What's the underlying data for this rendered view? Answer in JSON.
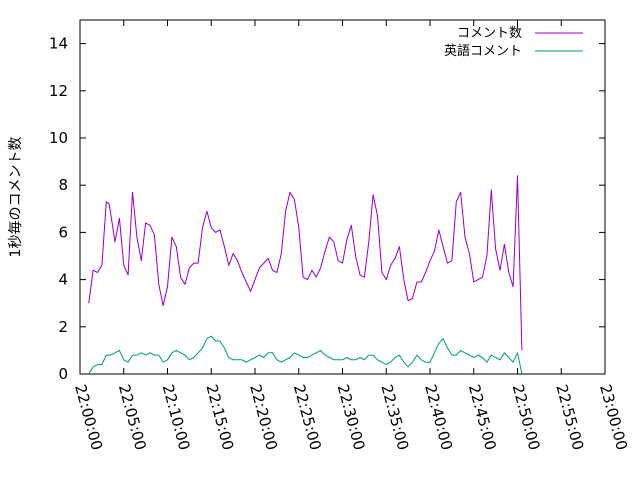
{
  "chart_data": {
    "type": "line",
    "ylabel": "1秒毎のコメント数",
    "xlabel": "",
    "ylim": [
      0,
      15
    ],
    "xlim": [
      "22:00:00",
      "23:00:00"
    ],
    "y_ticks": [
      "0",
      "2",
      "4",
      "6",
      "8",
      "10",
      "12",
      "14"
    ],
    "x_ticks": [
      "22:00:00",
      "22:05:00",
      "22:10:00",
      "22:15:00",
      "22:20:00",
      "22:25:00",
      "22:30:00",
      "22:35:00",
      "22:40:00",
      "22:45:00",
      "22:50:00",
      "22:55:00",
      "23:00:00"
    ],
    "grid": false,
    "legend_position": "top-right",
    "series": [
      {
        "name": "コメント数",
        "color": "#9400d3",
        "points": [
          [
            "22:01:00",
            3.0
          ],
          [
            "22:01:30",
            4.4
          ],
          [
            "22:02:00",
            4.3
          ],
          [
            "22:02:30",
            4.6
          ],
          [
            "22:03:00",
            7.3
          ],
          [
            "22:03:20",
            7.2
          ],
          [
            "22:04:00",
            5.6
          ],
          [
            "22:04:30",
            6.6
          ],
          [
            "22:05:00",
            4.6
          ],
          [
            "22:05:30",
            4.2
          ],
          [
            "22:06:00",
            7.7
          ],
          [
            "22:06:30",
            5.8
          ],
          [
            "22:07:00",
            4.8
          ],
          [
            "22:07:30",
            6.4
          ],
          [
            "22:08:00",
            6.3
          ],
          [
            "22:08:30",
            5.9
          ],
          [
            "22:09:00",
            3.8
          ],
          [
            "22:09:30",
            2.9
          ],
          [
            "22:10:00",
            3.7
          ],
          [
            "22:10:30",
            5.8
          ],
          [
            "22:11:00",
            5.4
          ],
          [
            "22:11:30",
            4.1
          ],
          [
            "22:12:00",
            3.8
          ],
          [
            "22:12:30",
            4.5
          ],
          [
            "22:13:00",
            4.7
          ],
          [
            "22:13:30",
            4.7
          ],
          [
            "22:14:00",
            6.2
          ],
          [
            "22:14:30",
            6.9
          ],
          [
            "22:15:00",
            6.2
          ],
          [
            "22:15:30",
            6.0
          ],
          [
            "22:16:00",
            6.1
          ],
          [
            "22:16:30",
            5.4
          ],
          [
            "22:17:00",
            4.6
          ],
          [
            "22:17:30",
            5.1
          ],
          [
            "22:18:00",
            4.8
          ],
          [
            "22:18:30",
            4.3
          ],
          [
            "22:19:00",
            3.9
          ],
          [
            "22:19:30",
            3.5
          ],
          [
            "22:20:00",
            4.0
          ],
          [
            "22:20:30",
            4.5
          ],
          [
            "22:21:00",
            4.7
          ],
          [
            "22:21:30",
            4.9
          ],
          [
            "22:22:00",
            4.4
          ],
          [
            "22:22:30",
            4.3
          ],
          [
            "22:23:00",
            5.1
          ],
          [
            "22:23:30",
            6.9
          ],
          [
            "22:24:00",
            7.7
          ],
          [
            "22:24:30",
            7.4
          ],
          [
            "22:25:00",
            6.2
          ],
          [
            "22:25:30",
            4.1
          ],
          [
            "22:26:00",
            4.0
          ],
          [
            "22:26:30",
            4.4
          ],
          [
            "22:27:00",
            4.1
          ],
          [
            "22:27:30",
            4.5
          ],
          [
            "22:28:00",
            5.2
          ],
          [
            "22:28:30",
            5.8
          ],
          [
            "22:29:00",
            5.6
          ],
          [
            "22:29:30",
            4.8
          ],
          [
            "22:30:00",
            4.7
          ],
          [
            "22:30:30",
            5.7
          ],
          [
            "22:31:00",
            6.3
          ],
          [
            "22:31:30",
            5.0
          ],
          [
            "22:32:00",
            4.2
          ],
          [
            "22:32:30",
            4.1
          ],
          [
            "22:33:00",
            5.6
          ],
          [
            "22:33:30",
            7.6
          ],
          [
            "22:34:00",
            6.7
          ],
          [
            "22:34:30",
            4.3
          ],
          [
            "22:35:00",
            4.0
          ],
          [
            "22:35:30",
            4.6
          ],
          [
            "22:36:00",
            4.9
          ],
          [
            "22:36:30",
            5.4
          ],
          [
            "22:37:00",
            4.0
          ],
          [
            "22:37:30",
            3.1
          ],
          [
            "22:38:00",
            3.2
          ],
          [
            "22:38:30",
            3.9
          ],
          [
            "22:39:00",
            3.9
          ],
          [
            "22:39:30",
            4.3
          ],
          [
            "22:40:00",
            4.8
          ],
          [
            "22:40:30",
            5.2
          ],
          [
            "22:41:00",
            6.1
          ],
          [
            "22:41:30",
            5.4
          ],
          [
            "22:42:00",
            4.7
          ],
          [
            "22:42:30",
            4.8
          ],
          [
            "22:43:00",
            7.3
          ],
          [
            "22:43:30",
            7.7
          ],
          [
            "22:44:00",
            5.8
          ],
          [
            "22:44:30",
            5.1
          ],
          [
            "22:45:00",
            3.9
          ],
          [
            "22:45:30",
            4.0
          ],
          [
            "22:46:00",
            4.1
          ],
          [
            "22:46:30",
            5.0
          ],
          [
            "22:47:00",
            7.8
          ],
          [
            "22:47:30",
            5.3
          ],
          [
            "22:48:00",
            4.4
          ],
          [
            "22:48:30",
            5.5
          ],
          [
            "22:49:00",
            4.3
          ],
          [
            "22:49:30",
            3.7
          ],
          [
            "22:50:00",
            8.4
          ],
          [
            "22:50:30",
            1.0
          ]
        ]
      },
      {
        "name": "英語コメント",
        "color": "#009e73",
        "points": [
          [
            "22:01:00",
            0.0
          ],
          [
            "22:01:30",
            0.3
          ],
          [
            "22:02:00",
            0.4
          ],
          [
            "22:02:30",
            0.4
          ],
          [
            "22:03:00",
            0.8
          ],
          [
            "22:03:30",
            0.8
          ],
          [
            "22:04:00",
            0.9
          ],
          [
            "22:04:30",
            1.0
          ],
          [
            "22:05:00",
            0.6
          ],
          [
            "22:05:30",
            0.5
          ],
          [
            "22:06:00",
            0.8
          ],
          [
            "22:06:30",
            0.8
          ],
          [
            "22:07:00",
            0.9
          ],
          [
            "22:07:30",
            0.8
          ],
          [
            "22:08:00",
            0.9
          ],
          [
            "22:08:30",
            0.8
          ],
          [
            "22:09:00",
            0.8
          ],
          [
            "22:09:30",
            0.5
          ],
          [
            "22:10:00",
            0.6
          ],
          [
            "22:10:30",
            0.9
          ],
          [
            "22:11:00",
            1.0
          ],
          [
            "22:11:30",
            0.9
          ],
          [
            "22:12:00",
            0.8
          ],
          [
            "22:12:30",
            0.6
          ],
          [
            "22:13:00",
            0.7
          ],
          [
            "22:13:30",
            0.9
          ],
          [
            "22:14:00",
            1.1
          ],
          [
            "22:14:30",
            1.5
          ],
          [
            "22:15:00",
            1.6
          ],
          [
            "22:15:30",
            1.4
          ],
          [
            "22:16:00",
            1.4
          ],
          [
            "22:16:30",
            1.1
          ],
          [
            "22:17:00",
            0.7
          ],
          [
            "22:17:30",
            0.6
          ],
          [
            "22:18:00",
            0.6
          ],
          [
            "22:18:30",
            0.6
          ],
          [
            "22:19:00",
            0.5
          ],
          [
            "22:19:30",
            0.6
          ],
          [
            "22:20:00",
            0.7
          ],
          [
            "22:20:30",
            0.8
          ],
          [
            "22:21:00",
            0.7
          ],
          [
            "22:21:30",
            0.9
          ],
          [
            "22:22:00",
            0.9
          ],
          [
            "22:22:30",
            0.6
          ],
          [
            "22:23:00",
            0.5
          ],
          [
            "22:23:30",
            0.6
          ],
          [
            "22:24:00",
            0.7
          ],
          [
            "22:24:30",
            0.9
          ],
          [
            "22:25:00",
            0.8
          ],
          [
            "22:25:30",
            0.7
          ],
          [
            "22:26:00",
            0.7
          ],
          [
            "22:26:30",
            0.8
          ],
          [
            "22:27:00",
            0.9
          ],
          [
            "22:27:30",
            1.0
          ],
          [
            "22:28:00",
            0.8
          ],
          [
            "22:28:30",
            0.7
          ],
          [
            "22:29:00",
            0.6
          ],
          [
            "22:29:30",
            0.6
          ],
          [
            "22:30:00",
            0.6
          ],
          [
            "22:30:30",
            0.7
          ],
          [
            "22:31:00",
            0.6
          ],
          [
            "22:31:30",
            0.6
          ],
          [
            "22:32:00",
            0.7
          ],
          [
            "22:32:30",
            0.6
          ],
          [
            "22:33:00",
            0.8
          ],
          [
            "22:33:30",
            0.8
          ],
          [
            "22:34:00",
            0.6
          ],
          [
            "22:34:30",
            0.5
          ],
          [
            "22:35:00",
            0.4
          ],
          [
            "22:35:30",
            0.5
          ],
          [
            "22:36:00",
            0.7
          ],
          [
            "22:36:30",
            0.8
          ],
          [
            "22:37:00",
            0.5
          ],
          [
            "22:37:30",
            0.3
          ],
          [
            "22:38:00",
            0.5
          ],
          [
            "22:38:30",
            0.8
          ],
          [
            "22:39:00",
            0.6
          ],
          [
            "22:39:30",
            0.5
          ],
          [
            "22:40:00",
            0.5
          ],
          [
            "22:40:30",
            0.9
          ],
          [
            "22:41:00",
            1.3
          ],
          [
            "22:41:30",
            1.5
          ],
          [
            "22:42:00",
            1.1
          ],
          [
            "22:42:30",
            0.8
          ],
          [
            "22:43:00",
            0.8
          ],
          [
            "22:43:30",
            1.0
          ],
          [
            "22:44:00",
            0.9
          ],
          [
            "22:44:30",
            0.8
          ],
          [
            "22:45:00",
            0.7
          ],
          [
            "22:45:30",
            0.8
          ],
          [
            "22:46:00",
            0.7
          ],
          [
            "22:46:30",
            0.5
          ],
          [
            "22:47:00",
            0.8
          ],
          [
            "22:47:30",
            0.7
          ],
          [
            "22:48:00",
            0.6
          ],
          [
            "22:48:30",
            0.9
          ],
          [
            "22:49:00",
            0.7
          ],
          [
            "22:49:30",
            0.5
          ],
          [
            "22:50:00",
            0.9
          ],
          [
            "22:50:30",
            0.0
          ]
        ]
      }
    ]
  }
}
